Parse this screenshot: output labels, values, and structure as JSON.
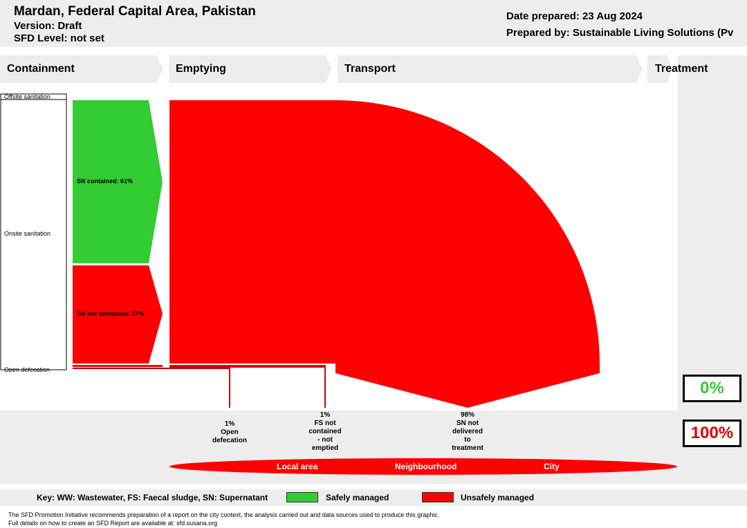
{
  "header": {
    "title": "Mardan, Federal Capital Area, Pakistan",
    "version": "Version: Draft",
    "sfd_level": "SFD Level: not set",
    "date_prepared": "Date prepared: 23 Aug 2024",
    "prepared_by": "Prepared by: Sustainable Living Solutions (Pv"
  },
  "stages": {
    "containment": "Containment",
    "emptying": "Emptying",
    "transport": "Transport",
    "treatment": "Treatment"
  },
  "categories": {
    "offsite": "Offsite sanitation",
    "onsite": "Onsite sanitation",
    "open_defecation": "Open defecation"
  },
  "flows": {
    "sn_contained": "SN contained: 61%",
    "sn_not_contained": "SN not contained: 37%"
  },
  "outcomes": {
    "open_defecation": [
      "1%",
      "Open",
      "defecation"
    ],
    "fs_not_contained": [
      "1%",
      "FS not",
      "contained",
      "- not",
      "emptied"
    ],
    "sn_not_delivered": [
      "98%",
      "SN not",
      "delivered",
      "to",
      "treatment"
    ]
  },
  "totals": {
    "safely": "0%",
    "unsafely": "100%"
  },
  "scale": {
    "local": "Local area",
    "neighbourhood": "Neighbourhood",
    "city": "City"
  },
  "key": {
    "text": "Key: WW: Wastewater, FS: Faecal sludge, SN: Supernatant",
    "safe": "Safely managed",
    "unsafe": "Unsafely managed"
  },
  "colors": {
    "safe": "#33cc33",
    "unsafe": "#ff0000",
    "band": "#ededed"
  },
  "footer": {
    "line1": "The SFD Promotion Initiative recommends preparation of a report on the city context, the analysis carried out and data sources used to produce this graphic.",
    "line2": "Full details on how to create an SFD Report are available at: sfd.susana.org"
  }
}
